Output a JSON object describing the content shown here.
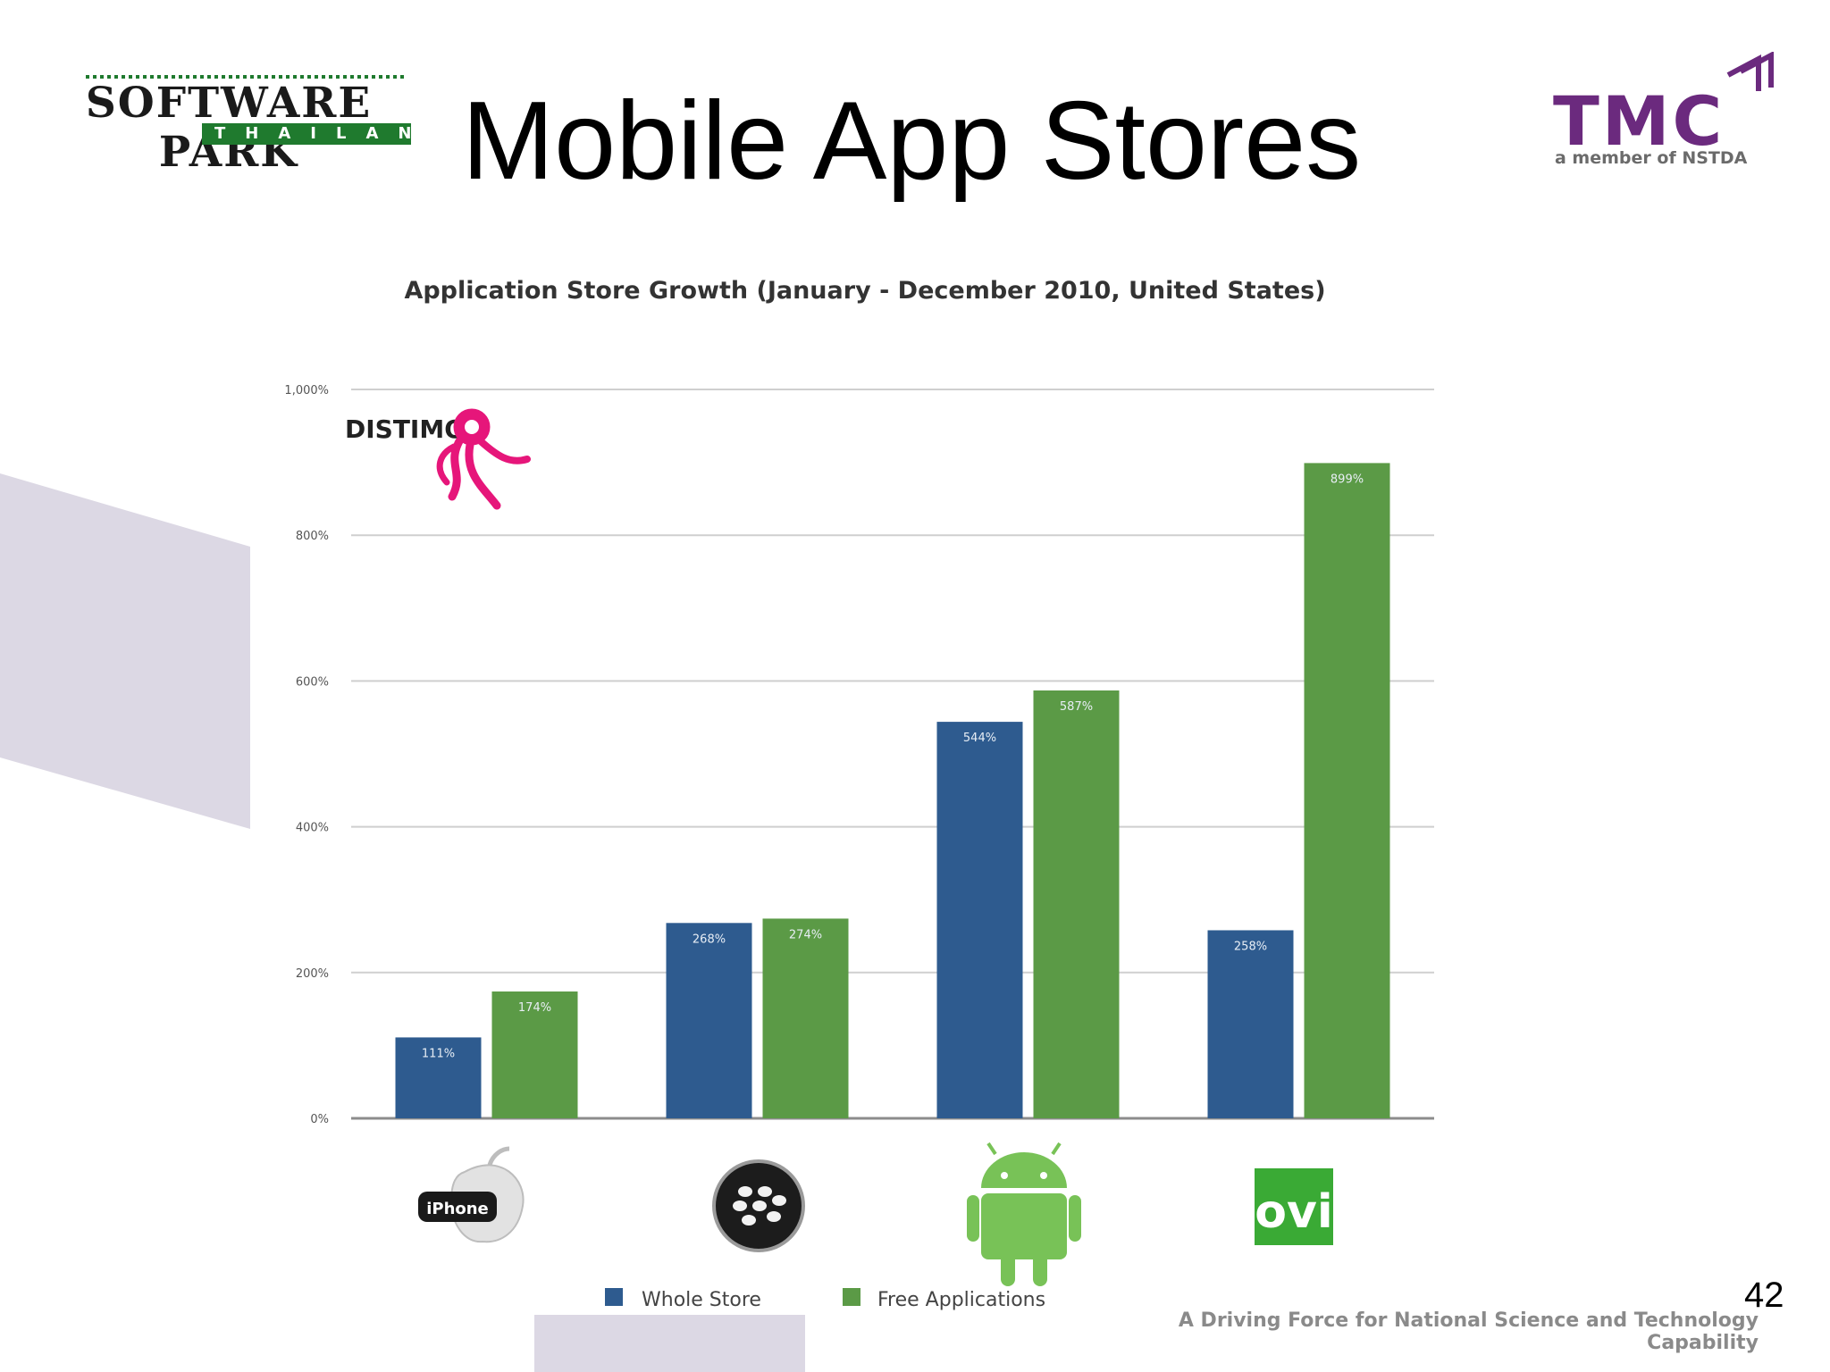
{
  "slide": {
    "title": "Mobile App Stores",
    "page_number": "42",
    "footer_tagline": "A Driving Force for National Science and Technology Capability"
  },
  "logos": {
    "left": {
      "name": "SOFTWARE PARK",
      "sub": "THAILAND",
      "color": "#1f7a2e"
    },
    "right": {
      "name": "TMC",
      "sub": "a member of NSTDA",
      "color": "#6b2a7e"
    },
    "distimo": {
      "name": "DISTIMO",
      "color": "#e6167a"
    }
  },
  "platform_icons": [
    {
      "icon": "apple-icon",
      "label": "iPhone"
    },
    {
      "icon": "blackberry-icon",
      "label": ""
    },
    {
      "icon": "android-icon",
      "label": ""
    },
    {
      "icon": "ovi-icon",
      "label": "ovi"
    }
  ],
  "chart_data": {
    "type": "bar",
    "title": "Application Store Growth (January - December 2010, United States)",
    "categories": [
      "iPhone",
      "BlackBerry",
      "Android",
      "Ovi"
    ],
    "series": [
      {
        "name": "Whole Store",
        "values": [
          111,
          268,
          544,
          258
        ],
        "labels": [
          "111%",
          "268%",
          "544%",
          "258%"
        ],
        "color": "#2e5b8f"
      },
      {
        "name": "Free Applications",
        "values": [
          174,
          274,
          587,
          899
        ],
        "labels": [
          "174%",
          "274%",
          "587%",
          "899%"
        ],
        "color": "#5b9a46"
      }
    ],
    "ylim": [
      0,
      1000
    ],
    "yticks": [
      0,
      200,
      400,
      600,
      800,
      1000
    ],
    "ytick_labels": [
      "0%",
      "200%",
      "400%",
      "600%",
      "800%",
      "1,000%"
    ],
    "grid": true,
    "legend_position": "bottom"
  }
}
